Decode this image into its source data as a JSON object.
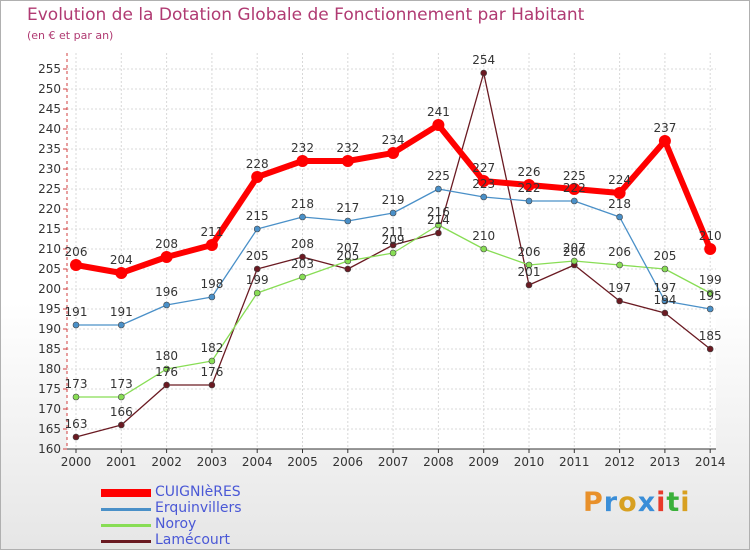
{
  "title": "Evolution de la Dotation Globale de Fonctionnement par Habitant",
  "subtitle": "(en € et par an)",
  "logo": {
    "text": "Proxiti",
    "colors": [
      "#e8902a",
      "#3a8ed8",
      "#d8a020",
      "#3a8ed8",
      "#e83a2a",
      "#3ab03a",
      "#d8a020"
    ]
  },
  "chart_data": {
    "type": "line",
    "title": "Evolution de la Dotation Globale de Fonctionnement par Habitant",
    "ylabel": "(en € et par an)",
    "xlabel": "",
    "ylim": [
      160,
      255
    ],
    "y_ticks": [
      "160",
      "165",
      "170",
      "175",
      "180",
      "185",
      "190",
      "195",
      "200",
      "205",
      "210",
      "215",
      "220",
      "225",
      "230",
      "235",
      "240",
      "245",
      "250",
      "255"
    ],
    "grid": true,
    "legend_position": "bottom-left",
    "categories": [
      "2000",
      "2001",
      "2002",
      "2003",
      "2004",
      "2005",
      "2006",
      "2007",
      "2008",
      "2009",
      "2010",
      "2011",
      "2012",
      "2013",
      "2014"
    ],
    "series": [
      {
        "name": "CUIGNIèRES",
        "color": "#ff0000",
        "values": [
          206,
          204,
          208,
          211,
          228,
          232,
          232,
          234,
          241,
          227,
          226,
          225,
          224,
          237,
          210
        ],
        "labels": [
          "206",
          "204",
          "208",
          "211",
          "228",
          "232",
          "232",
          "234",
          "241",
          "227",
          "226",
          "225",
          "224",
          "237",
          "210"
        ]
      },
      {
        "name": "Erquinvillers",
        "color": "#4a90c8",
        "values": [
          191,
          191,
          196,
          198,
          215,
          218,
          217,
          219,
          225,
          223,
          222,
          222,
          218,
          197,
          195
        ],
        "labels": [
          "191",
          "191",
          "196",
          "198",
          "215",
          "218",
          "217",
          "219",
          "225",
          "223",
          "222",
          "222",
          "218",
          "197",
          "195"
        ]
      },
      {
        "name": "Noroy",
        "color": "#88dd55",
        "values": [
          173,
          173,
          180,
          182,
          199,
          203,
          207,
          209,
          216,
          210,
          206,
          207,
          206,
          205,
          199
        ],
        "labels": [
          "173",
          "173",
          "180",
          "182",
          "199",
          "203",
          "207",
          "209",
          "216",
          "210",
          "206",
          "207",
          "206",
          "205",
          "199"
        ]
      },
      {
        "name": "Lamécourt",
        "color": "#6a1a22",
        "values": [
          163,
          166,
          176,
          176,
          205,
          208,
          205,
          211,
          214,
          254,
          201,
          206,
          197,
          194,
          185
        ],
        "labels": [
          "163",
          "166",
          "176",
          "176",
          "205",
          "208",
          "205",
          "211",
          "214",
          "254",
          "201",
          "206",
          "197",
          "194",
          "185"
        ]
      }
    ]
  }
}
